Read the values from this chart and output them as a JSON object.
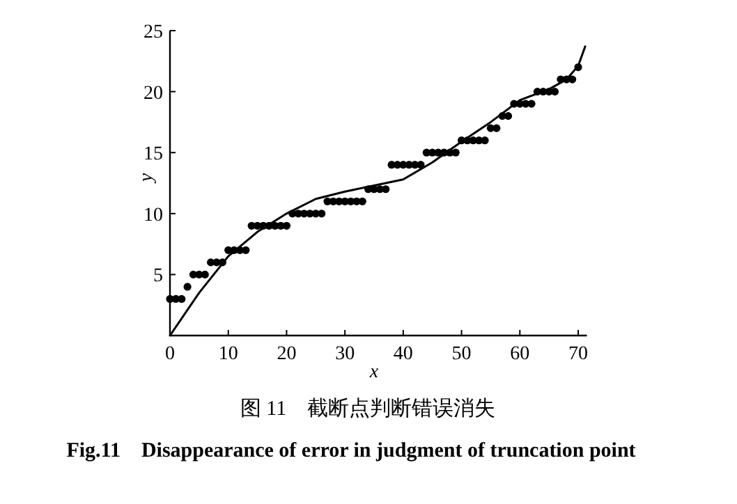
{
  "chart_data": {
    "type": "scatter",
    "xlabel": "x",
    "ylabel": "y",
    "annotations": [
      "图 11　截断点判断错误消失",
      "Fig.11　Disappearance of error in judgment of truncation point"
    ],
    "xlim": [
      0,
      71.5
    ],
    "xticks": [
      0,
      10,
      20,
      30,
      40,
      50,
      60,
      70
    ],
    "ylim": [
      0,
      25
    ],
    "yticks": [
      5,
      10,
      15,
      20,
      25
    ],
    "grid": false,
    "series": [
      {
        "marker": "circle",
        "color": "#000000",
        "x": [
          0,
          1,
          2,
          3,
          4,
          5,
          6,
          7,
          8,
          9,
          10,
          11,
          12,
          13,
          14,
          15,
          16,
          17,
          18,
          19,
          20,
          21,
          22,
          23,
          24,
          25,
          26,
          27,
          28,
          29,
          30,
          31,
          32,
          33,
          34,
          35,
          36,
          37,
          38,
          39,
          40,
          41,
          42,
          43,
          44,
          45,
          46,
          47,
          48,
          49,
          50,
          51,
          52,
          53,
          54,
          55,
          56,
          57,
          58,
          59,
          60,
          61,
          62,
          63,
          64,
          65,
          66,
          67,
          68,
          69,
          70
        ],
        "values": [
          3,
          3,
          3,
          4,
          5,
          5,
          5,
          6,
          6,
          6,
          7,
          7,
          7,
          7,
          9,
          9,
          9,
          9,
          9,
          9,
          9,
          10,
          10,
          10,
          10,
          10,
          10,
          11,
          11,
          11,
          11,
          11,
          11,
          11,
          12,
          12,
          12,
          12,
          14,
          14,
          14,
          14,
          14,
          14,
          15,
          15,
          15,
          15,
          15,
          15,
          16,
          16,
          16,
          16,
          16,
          17,
          17,
          18,
          18,
          19,
          19,
          19,
          19,
          20,
          20,
          20,
          20,
          21,
          21,
          21,
          22
        ]
      },
      {
        "type": "line",
        "marker": "none",
        "line_style": "solid",
        "color": "#000000",
        "x": [
          0,
          5,
          10,
          15,
          20,
          25,
          30,
          35,
          40,
          45,
          50,
          55,
          60,
          65,
          68,
          70,
          71.2
        ],
        "values": [
          0,
          3.5,
          6.5,
          8.5,
          10,
          11.2,
          11.8,
          12.3,
          12.8,
          14.2,
          15.9,
          17.5,
          19.3,
          20.2,
          21,
          22.1,
          23.7
        ]
      }
    ]
  }
}
